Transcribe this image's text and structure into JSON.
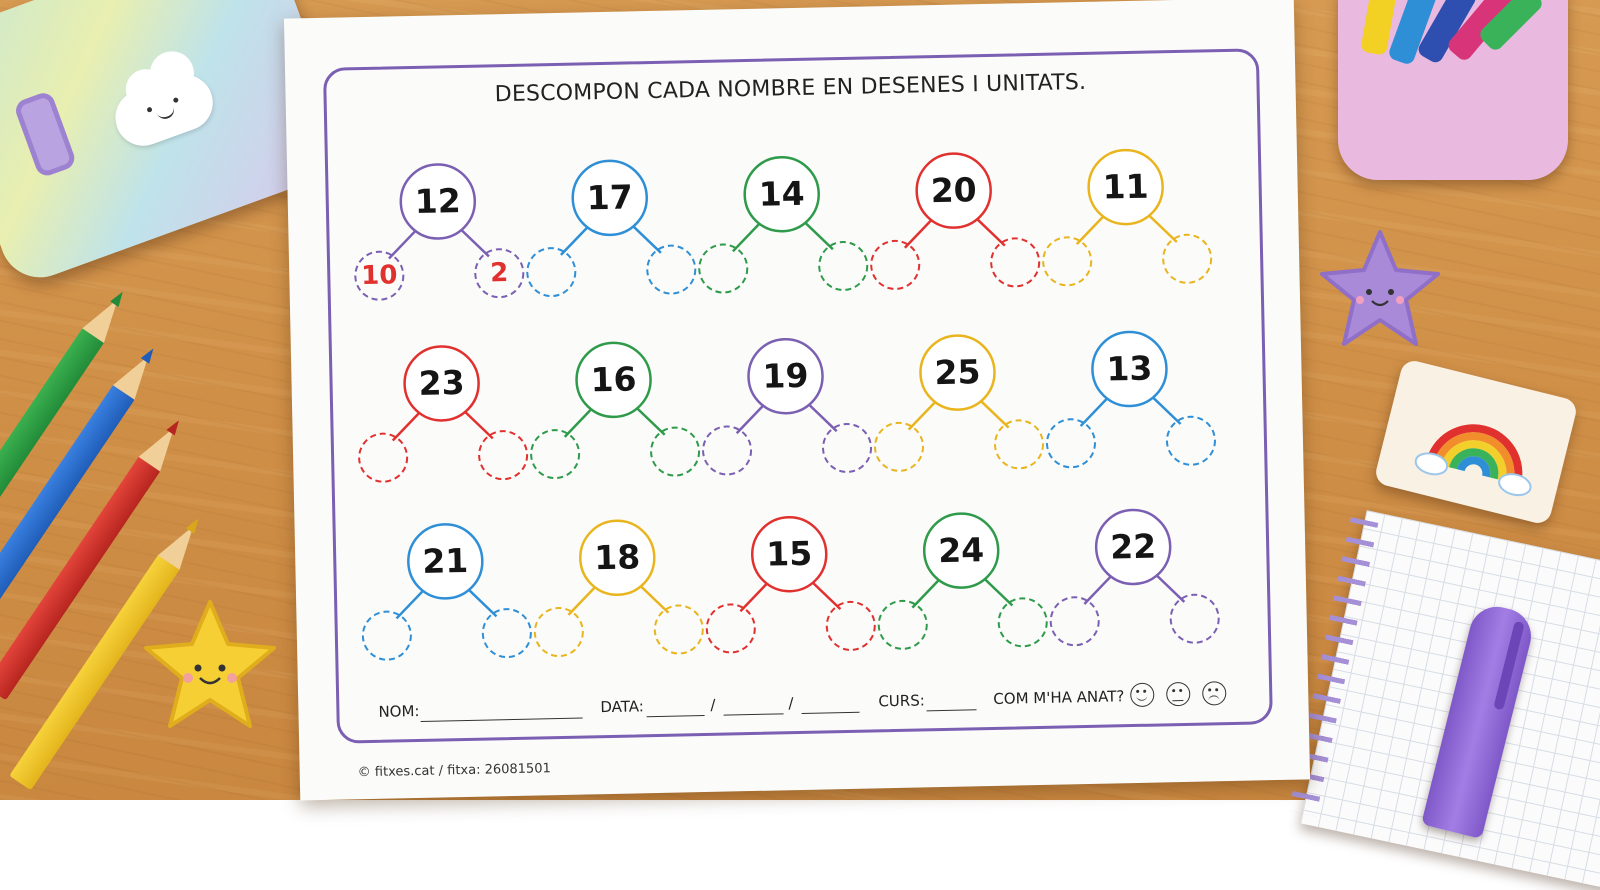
{
  "worksheet": {
    "title": "DESCOMPON CADA NOMBRE EN DESENES I UNITATS.",
    "rows": [
      [
        {
          "number": "12",
          "color": "#7b5fb2",
          "tens": "10",
          "units": "2"
        },
        {
          "number": "17",
          "color": "#2f8fd6",
          "tens": "",
          "units": ""
        },
        {
          "number": "14",
          "color": "#2e9a4a",
          "tens": "",
          "units": ""
        },
        {
          "number": "20",
          "color": "#e1312f",
          "tens": "",
          "units": ""
        },
        {
          "number": "11",
          "color": "#e9b51e",
          "tens": "",
          "units": ""
        }
      ],
      [
        {
          "number": "23",
          "color": "#e1312f",
          "tens": "",
          "units": ""
        },
        {
          "number": "16",
          "color": "#2e9a4a",
          "tens": "",
          "units": ""
        },
        {
          "number": "19",
          "color": "#7b5fb2",
          "tens": "",
          "units": ""
        },
        {
          "number": "25",
          "color": "#e9b51e",
          "tens": "",
          "units": ""
        },
        {
          "number": "13",
          "color": "#2f8fd6",
          "tens": "",
          "units": ""
        }
      ],
      [
        {
          "number": "21",
          "color": "#2f8fd6",
          "tens": "",
          "units": ""
        },
        {
          "number": "18",
          "color": "#e9b51e",
          "tens": "",
          "units": ""
        },
        {
          "number": "15",
          "color": "#e1312f",
          "tens": "",
          "units": ""
        },
        {
          "number": "24",
          "color": "#2e9a4a",
          "tens": "",
          "units": ""
        },
        {
          "number": "22",
          "color": "#7b5fb2",
          "tens": "",
          "units": ""
        }
      ]
    ],
    "footer": {
      "name_label": "NOM:",
      "date_label": "DATA:",
      "date_sep": "/",
      "course_label": "CURS:",
      "feedback_label": "COM M'HA ANAT?",
      "faces": [
        "happy-face-icon",
        "neutral-face-icon",
        "sad-face-icon"
      ]
    },
    "copyright": "© fitxes.cat / fitxa: 26081501"
  },
  "colors": {
    "frame": "#7b5fb2",
    "answer": "#e1312f",
    "desk": "#d79a52"
  }
}
